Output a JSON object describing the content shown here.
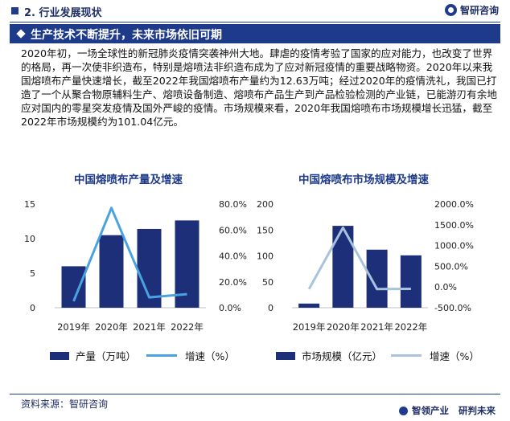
{
  "header": {
    "section": "2. 行业发展现状",
    "brand": "智研咨询"
  },
  "banner": {
    "title": "生产技术不断提升，未来市场依旧可期"
  },
  "body": {
    "paragraph": "2020年初，一场全球性的新冠肺炎疫情突袭神州大地。肆虐的疫情考验了国家的应对能力，也改变了世界的格局，再一次使非织造布，特别是熔喷法非织造布成为了应对新冠疫情的重要战略物资。2020年以来我国熔喷布产量快速增长，截至2022年我国熔喷布产量约为12.63万吨；经过2020年的疫情洗礼，我国已打造了一个从聚合物原辅料生产、熔喷设备制造、熔喷布产品生产到产品检验检测的产业链，已能游刃有余地应对国内的零星突发疫情及国外严峻的疫情。市场规模来看，2020年我国熔喷布市场规模增长迅猛，截至2022年市场规模约为101.04亿元。"
  },
  "chart_data": [
    {
      "type": "bar",
      "title": "中国熔喷布产量及增速",
      "categories": [
        "2019年",
        "2020年",
        "2021年",
        "2022年"
      ],
      "series": [
        {
          "name": "产量（万吨）",
          "kind": "bar",
          "axis": "left",
          "values": [
            6.0,
            10.5,
            11.4,
            12.63
          ]
        },
        {
          "name": "增速（%）",
          "kind": "line",
          "axis": "right",
          "values": [
            5.0,
            77.0,
            8.0,
            10.5
          ]
        }
      ],
      "ylim": [
        0,
        15
      ],
      "yticks": [
        "0",
        "5",
        "10",
        "15"
      ],
      "y2lim": [
        0,
        80
      ],
      "y2ticks": [
        "0.0%",
        "20.0%",
        "40.0%",
        "60.0%",
        "80.0%"
      ],
      "colors": {
        "bar": "#1e2f7a",
        "line": "#4aa3e0"
      },
      "legend_position": "bottom"
    },
    {
      "type": "bar",
      "title": "中国熔喷布市场规模及增速",
      "categories": [
        "2019年",
        "2020年",
        "2021年",
        "2022年"
      ],
      "series": [
        {
          "name": "市场规模（亿元）",
          "kind": "bar",
          "axis": "left",
          "values": [
            8,
            158,
            112,
            101.04
          ]
        },
        {
          "name": "增速（%）",
          "kind": "line",
          "axis": "right",
          "values": [
            -50,
            1430,
            -50,
            -45
          ]
        }
      ],
      "ylim": [
        0,
        200
      ],
      "yticks": [
        "0",
        "50",
        "100",
        "150",
        "200"
      ],
      "y2lim": [
        -500,
        2000
      ],
      "y2ticks": [
        "-500.0%",
        "0.0%",
        "500.0%",
        "1000.0%",
        "1500.0%",
        "2000.0%"
      ],
      "colors": {
        "bar": "#1e2f7a",
        "line": "#a9c3dc"
      },
      "legend_position": "bottom"
    }
  ],
  "footer": {
    "source": "资料来源：智研咨询",
    "slogan_a": "智领产业",
    "slogan_b": "研判未来"
  }
}
